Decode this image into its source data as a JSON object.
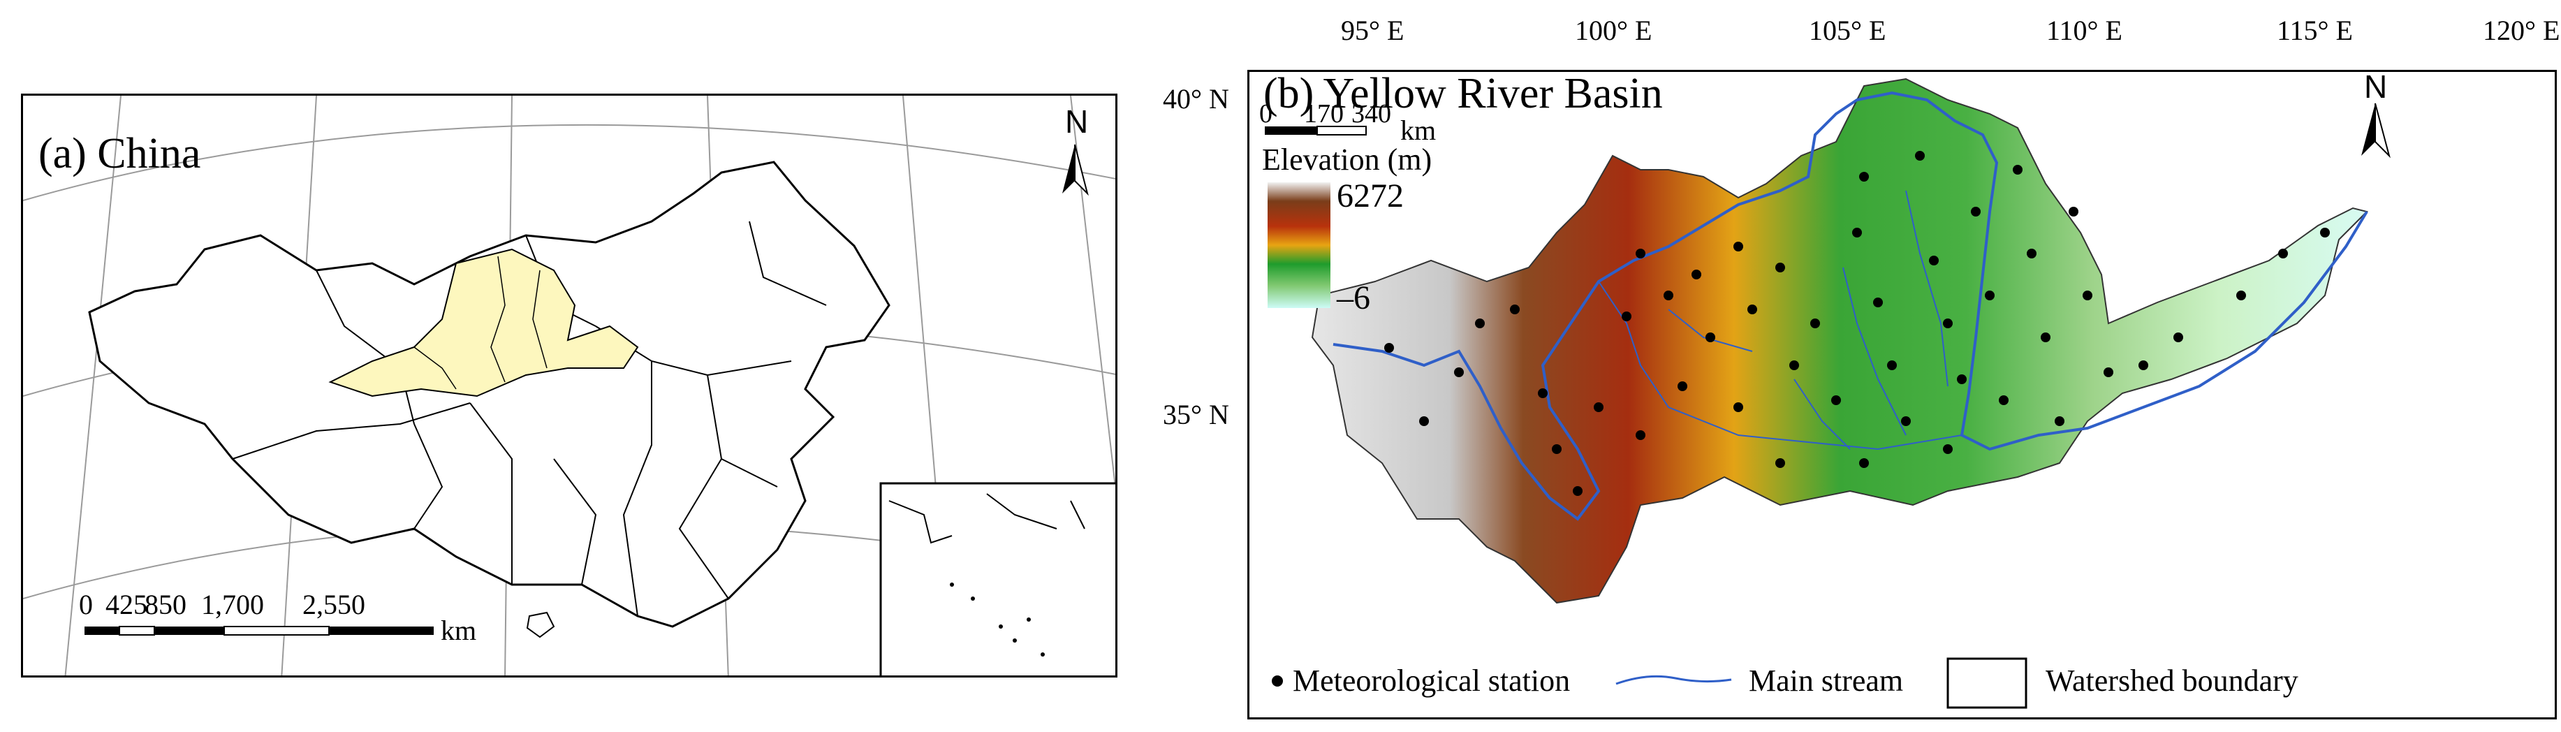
{
  "panel_a": {
    "title": "(a) China",
    "north_label": "N",
    "scale": {
      "ticks": [
        "0",
        "425",
        "850",
        "1,700",
        "2,550"
      ],
      "unit": "km"
    },
    "colors": {
      "basin_fill": "#fdf7be",
      "outline": "#000000",
      "graticule": "#9a9a9a"
    }
  },
  "panel_b": {
    "title": "(b) Yellow River Basin",
    "north_label": "N",
    "scale": {
      "ticks": [
        "0",
        "170",
        "340"
      ],
      "unit": "km"
    },
    "elevation_legend": {
      "title": "Elevation (m)",
      "max": "6272",
      "min": "–6",
      "colors": [
        "#f2f2f2",
        "#7a3d1a",
        "#b8320c",
        "#e8a412",
        "#1e9c2c",
        "#80c870",
        "#cdfbf6"
      ]
    },
    "longitude_ticks": [
      "95° E",
      "100° E",
      "105° E",
      "110° E",
      "115° E",
      "120° E"
    ],
    "latitude_ticks": [
      "40° N",
      "35° N"
    ],
    "legend": {
      "station": "Meteorological station",
      "stream": "Main stream",
      "boundary": "Watershed boundary"
    },
    "colors": {
      "stream": "#2f5fc8",
      "station": "#000000"
    }
  }
}
